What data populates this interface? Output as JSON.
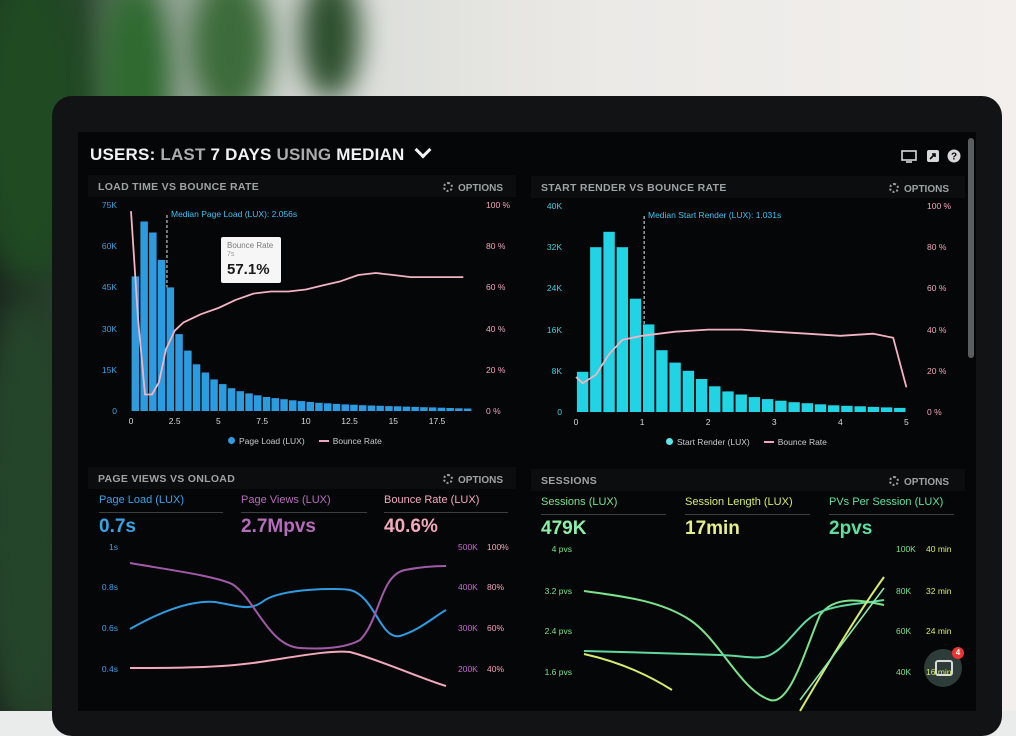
{
  "header": {
    "title_users": "USERS:",
    "title_last": "LAST",
    "title_days": "7 DAYS",
    "title_using": "USING",
    "title_median": "MEDIAN",
    "icons": [
      "monitor-icon",
      "share-icon",
      "help-icon"
    ]
  },
  "panels": {
    "load_time": {
      "title": "LOAD TIME VS BOUNCE RATE",
      "options": "OPTIONS",
      "median_label": "Median Page Load (LUX): 2.056s",
      "tooltip": {
        "line1": "Bounce Rate",
        "line2": "7s",
        "value": "57.1%"
      },
      "y_left_ticks": [
        "75K",
        "60K",
        "45K",
        "30K",
        "15K",
        "0"
      ],
      "y_right_ticks": [
        "100 %",
        "80 %",
        "60 %",
        "40 %",
        "20 %",
        "0 %"
      ],
      "x_ticks": [
        "0",
        "2.5",
        "5",
        "7.5",
        "10",
        "12.5",
        "15",
        "17.5"
      ],
      "legend_bar": "Page Load (LUX)",
      "legend_line": "Bounce Rate"
    },
    "start_render": {
      "title": "START RENDER VS BOUNCE RATE",
      "options": "OPTIONS",
      "median_label": "Median Start Render (LUX): 1.031s",
      "y_left_ticks": [
        "40K",
        "32K",
        "24K",
        "16K",
        "8K",
        "0"
      ],
      "y_right_ticks": [
        "100 %",
        "80 %",
        "60 %",
        "40 %",
        "20 %",
        "0 %"
      ],
      "x_ticks": [
        "0",
        "1",
        "2",
        "3",
        "4",
        "5"
      ],
      "legend_bar": "Start Render (LUX)",
      "legend_line": "Bounce Rate"
    },
    "page_views": {
      "title": "PAGE VIEWS VS ONLOAD",
      "options": "OPTIONS",
      "metrics": [
        {
          "label": "Page Load (LUX)",
          "value": "0.7s"
        },
        {
          "label": "Page Views (LUX)",
          "value": "2.7Mpvs"
        },
        {
          "label": "Bounce Rate (LUX)",
          "value": "40.6%"
        }
      ],
      "y_left_ticks": [
        "1s",
        "0.8s",
        "0.6s",
        "0.4s"
      ],
      "y_mid_ticks": [
        "500K",
        "400K",
        "300K",
        "200K"
      ],
      "y_right_ticks": [
        "100%",
        "80%",
        "60%",
        "40%"
      ]
    },
    "sessions": {
      "title": "SESSIONS",
      "options": "OPTIONS",
      "metrics": [
        {
          "label": "Sessions (LUX)",
          "value": "479K"
        },
        {
          "label": "Session Length (LUX)",
          "value": "17min"
        },
        {
          "label": "PVs Per Session (LUX)",
          "value": "2pvs"
        }
      ],
      "y_left_ticks": [
        "4 pvs",
        "3.2 pvs",
        "2.4 pvs",
        "1.6 pvs"
      ],
      "y_mid_ticks": [
        "100K",
        "80K",
        "60K",
        "40K"
      ],
      "y_right_ticks": [
        "40 min",
        "32 min",
        "24 min",
        "16 min"
      ]
    }
  },
  "chat": {
    "badge": "4"
  },
  "chart_data": [
    {
      "type": "bar",
      "title": "LOAD TIME VS BOUNCE RATE",
      "x": [
        0.25,
        0.75,
        1.25,
        1.75,
        2.25,
        2.75,
        3.25,
        3.75,
        4.25,
        4.75,
        5.25,
        5.75,
        6.25,
        6.75,
        7.25,
        7.75,
        8.25,
        8.75,
        9.25,
        9.75,
        10.25,
        10.75,
        11.25,
        11.75,
        12.25,
        12.75,
        13.25,
        13.75,
        14.25,
        14.75,
        15.25,
        15.75,
        16.25,
        16.75,
        17.25,
        17.75,
        18.25,
        18.75,
        19.25
      ],
      "series": [
        {
          "name": "Page Load (LUX)",
          "values": [
            49000,
            69000,
            65000,
            55000,
            45000,
            28000,
            22000,
            17000,
            14000,
            11500,
            9800,
            8300,
            7200,
            6400,
            5700,
            5100,
            4700,
            4300,
            3900,
            3600,
            3300,
            3000,
            2800,
            2600,
            2400,
            2300,
            2100,
            2000,
            1900,
            1800,
            1700,
            1600,
            1500,
            1400,
            1300,
            1200,
            1100,
            1000,
            900
          ]
        },
        {
          "name": "Bounce Rate",
          "type": "line",
          "axis": "right",
          "x": [
            0,
            0.4,
            0.8,
            1.2,
            1.6,
            2.0,
            2.5,
            3,
            4,
            5,
            6,
            7,
            8,
            9,
            10,
            11,
            12,
            13,
            14,
            15,
            16,
            17,
            18,
            19
          ],
          "values": [
            97,
            45,
            8,
            8,
            14,
            30,
            39,
            43,
            47,
            50,
            54,
            57,
            58,
            58,
            59,
            61,
            63,
            66,
            67,
            66,
            65,
            65,
            65,
            65
          ]
        }
      ],
      "ylim": [
        0,
        75000
      ],
      "y2lim": [
        0,
        100
      ],
      "xlim": [
        0,
        19.5
      ],
      "median": 2.056
    },
    {
      "type": "bar",
      "title": "START RENDER VS BOUNCE RATE",
      "x": [
        0.1,
        0.3,
        0.5,
        0.7,
        0.9,
        1.1,
        1.3,
        1.5,
        1.7,
        1.9,
        2.1,
        2.3,
        2.5,
        2.7,
        2.9,
        3.1,
        3.3,
        3.5,
        3.7,
        3.9,
        4.1,
        4.3,
        4.5,
        4.7,
        4.9
      ],
      "series": [
        {
          "name": "Start Render (LUX)",
          "values": [
            7800,
            32000,
            35000,
            32000,
            22000,
            17000,
            12000,
            9600,
            8000,
            6400,
            5000,
            4000,
            3400,
            2900,
            2500,
            2200,
            1900,
            1700,
            1500,
            1300,
            1200,
            1100,
            1000,
            900,
            800
          ]
        },
        {
          "name": "Bounce Rate",
          "type": "line",
          "axis": "right",
          "x": [
            0,
            0.1,
            0.3,
            0.5,
            0.7,
            1,
            1.5,
            2,
            2.5,
            3,
            3.5,
            4,
            4.5,
            4.8,
            5.0
          ],
          "values": [
            17,
            14,
            18,
            28,
            35,
            37,
            39,
            40,
            40,
            39,
            38,
            37,
            38,
            36,
            12
          ]
        }
      ],
      "ylim": [
        0,
        40000
      ],
      "y2lim": [
        0,
        100
      ],
      "xlim": [
        0,
        5.1
      ],
      "median": 1.031
    }
  ]
}
